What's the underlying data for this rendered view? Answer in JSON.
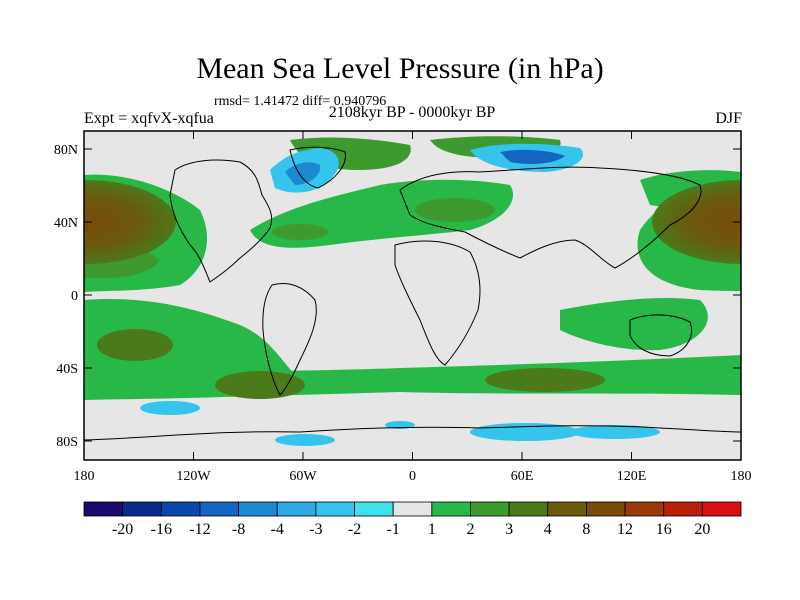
{
  "title": "Mean Sea Level Pressure (in hPa)",
  "stats": "rmsd= 1.41472 diff= 0.940796",
  "experiment": "Expt = xqfvX-xqfua",
  "period": "2108kyr BP - 0000kyr BP",
  "season": "DJF",
  "map": {
    "lon_ticks": [
      "180",
      "120W",
      "60W",
      "0",
      "60E",
      "120E",
      "180"
    ],
    "lat_ticks": [
      "80N",
      "40N",
      "0",
      "40S",
      "80S"
    ],
    "background_color": "#e6e6e6",
    "coast_color": "#000000"
  },
  "colorbar": {
    "colors": [
      "#1a0a6e",
      "#0a2a8c",
      "#0b49a8",
      "#1565c0",
      "#1e88d0",
      "#2ea8e0",
      "#35c4ec",
      "#3fe0f0",
      "#e6e6e6",
      "#28b848",
      "#3c9a2e",
      "#4a7a1a",
      "#6a5a0e",
      "#7a4a0a",
      "#9a3a0a",
      "#b8200a",
      "#d81010"
    ],
    "labels": [
      "-20",
      "-16",
      "-12",
      "-8",
      "-4",
      "-3",
      "-2",
      "-1",
      "1",
      "2",
      "3",
      "4",
      "8",
      "12",
      "16",
      "20"
    ]
  }
}
